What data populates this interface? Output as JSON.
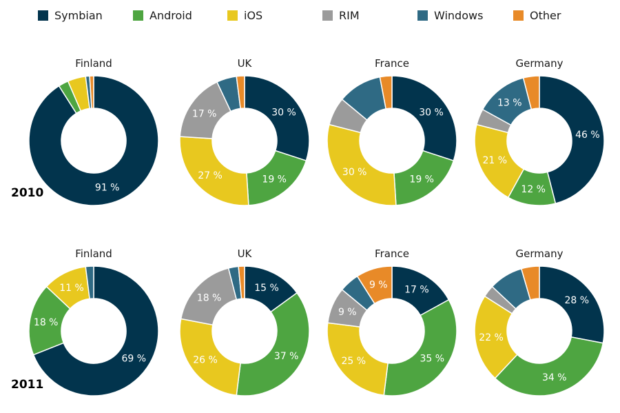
{
  "colors": {
    "Symbian": "#02344d",
    "Android": "#4ea541",
    "iOS": "#e8c81f",
    "RIM": "#9b9b9b",
    "Windows": "#2f6a84",
    "Other": "#e88a28"
  },
  "legend": [
    {
      "name": "Symbian",
      "label": "Symbian"
    },
    {
      "name": "Android",
      "label": "Android"
    },
    {
      "name": "iOS",
      "label": "iOS"
    },
    {
      "name": "RIM",
      "label": "RIM"
    },
    {
      "name": "Windows",
      "label": "Windows"
    },
    {
      "name": "Other",
      "label": "Other"
    }
  ],
  "years": [
    {
      "label": "2010"
    },
    {
      "label": "2011"
    }
  ],
  "chart_data": [
    {
      "type": "pie",
      "subtype": "donut",
      "title": "Finland",
      "year": "2010",
      "slices": [
        {
          "category": "Symbian",
          "value": 91,
          "label": "91 %"
        },
        {
          "category": "Android",
          "value": 2.5,
          "label": ""
        },
        {
          "category": "iOS",
          "value": 4.5,
          "label": ""
        },
        {
          "category": "RIM",
          "value": 0,
          "label": ""
        },
        {
          "category": "Windows",
          "value": 1,
          "label": ""
        },
        {
          "category": "Other",
          "value": 1,
          "label": ""
        }
      ]
    },
    {
      "type": "pie",
      "subtype": "donut",
      "title": "UK",
      "year": "2010",
      "slices": [
        {
          "category": "Symbian",
          "value": 30,
          "label": "30 %"
        },
        {
          "category": "Android",
          "value": 19,
          "label": "19 %"
        },
        {
          "category": "iOS",
          "value": 27,
          "label": "27 %"
        },
        {
          "category": "RIM",
          "value": 17,
          "label": "17 %"
        },
        {
          "category": "Windows",
          "value": 5,
          "label": ""
        },
        {
          "category": "Other",
          "value": 2,
          "label": ""
        }
      ]
    },
    {
      "type": "pie",
      "subtype": "donut",
      "title": "France",
      "year": "2010",
      "slices": [
        {
          "category": "Symbian",
          "value": 30,
          "label": "30 %"
        },
        {
          "category": "Android",
          "value": 19,
          "label": "19 %"
        },
        {
          "category": "iOS",
          "value": 30,
          "label": "30 %"
        },
        {
          "category": "RIM",
          "value": 7,
          "label": ""
        },
        {
          "category": "Windows",
          "value": 11,
          "label": ""
        },
        {
          "category": "Other",
          "value": 3,
          "label": ""
        }
      ]
    },
    {
      "type": "pie",
      "subtype": "donut",
      "title": "Germany",
      "year": "2010",
      "slices": [
        {
          "category": "Symbian",
          "value": 46,
          "label": "46 %"
        },
        {
          "category": "Android",
          "value": 12,
          "label": "12 %"
        },
        {
          "category": "iOS",
          "value": 21,
          "label": "21 %"
        },
        {
          "category": "RIM",
          "value": 4,
          "label": ""
        },
        {
          "category": "Windows",
          "value": 13,
          "label": "13 %"
        },
        {
          "category": "Other",
          "value": 4,
          "label": ""
        }
      ]
    },
    {
      "type": "pie",
      "subtype": "donut",
      "title": "Finland",
      "year": "2011",
      "slices": [
        {
          "category": "Symbian",
          "value": 69,
          "label": "69 %"
        },
        {
          "category": "Android",
          "value": 18,
          "label": "18 %"
        },
        {
          "category": "iOS",
          "value": 11,
          "label": "11 %"
        },
        {
          "category": "RIM",
          "value": 0,
          "label": ""
        },
        {
          "category": "Windows",
          "value": 2,
          "label": ""
        },
        {
          "category": "Other",
          "value": 0,
          "label": ""
        }
      ]
    },
    {
      "type": "pie",
      "subtype": "donut",
      "title": "UK",
      "year": "2011",
      "slices": [
        {
          "category": "Symbian",
          "value": 15,
          "label": "15 %"
        },
        {
          "category": "Android",
          "value": 37,
          "label": "37 %"
        },
        {
          "category": "iOS",
          "value": 26,
          "label": "26 %"
        },
        {
          "category": "RIM",
          "value": 18,
          "label": "18 %"
        },
        {
          "category": "Windows",
          "value": 2.5,
          "label": ""
        },
        {
          "category": "Other",
          "value": 1.5,
          "label": ""
        }
      ]
    },
    {
      "type": "pie",
      "subtype": "donut",
      "title": "France",
      "year": "2011",
      "slices": [
        {
          "category": "Symbian",
          "value": 17,
          "label": "17 %"
        },
        {
          "category": "Android",
          "value": 35,
          "label": "35 %"
        },
        {
          "category": "iOS",
          "value": 25,
          "label": "25 %"
        },
        {
          "category": "RIM",
          "value": 9,
          "label": "9 %"
        },
        {
          "category": "Windows",
          "value": 5,
          "label": ""
        },
        {
          "category": "Other",
          "value": 9,
          "label": "9 %"
        }
      ]
    },
    {
      "type": "pie",
      "subtype": "donut",
      "title": "Germany",
      "year": "2011",
      "slices": [
        {
          "category": "Symbian",
          "value": 28,
          "label": "28 %"
        },
        {
          "category": "Android",
          "value": 34,
          "label": "34 %"
        },
        {
          "category": "iOS",
          "value": 22,
          "label": "22 %"
        },
        {
          "category": "RIM",
          "value": 3,
          "label": ""
        },
        {
          "category": "Windows",
          "value": 8.5,
          "label": ""
        },
        {
          "category": "Other",
          "value": 4.5,
          "label": ""
        }
      ]
    }
  ]
}
